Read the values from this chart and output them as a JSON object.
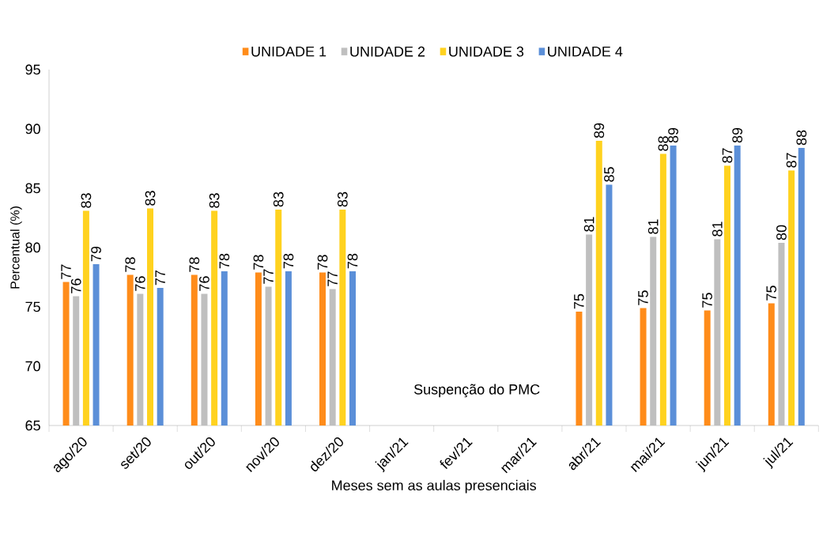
{
  "chart_data": {
    "type": "bar",
    "xlabel": "Meses sem as aulas presenciais",
    "ylabel": "Percentual (%)",
    "categories": [
      "ago/20",
      "set/20",
      "out/20",
      "nov/20",
      "dez/20",
      "jan/21",
      "fev/21",
      "mar/21",
      "abr/21",
      "mai/21",
      "jun/21",
      "jul/21"
    ],
    "series": [
      {
        "name": "UNIDADE 1",
        "color": "#ff8c1a",
        "values": [
          77.1,
          77.7,
          77.7,
          77.9,
          77.9,
          null,
          null,
          null,
          74.6,
          74.9,
          74.7,
          75.3
        ],
        "value_labels": [
          "77",
          "78",
          "78",
          "78",
          "78",
          null,
          null,
          null,
          "75",
          "75",
          "75",
          "75"
        ]
      },
      {
        "name": "UNIDADE 2",
        "color": "#bfbfbf",
        "values": [
          75.9,
          76.1,
          76.1,
          76.7,
          76.5,
          null,
          null,
          null,
          81.1,
          80.9,
          80.7,
          80.4
        ],
        "value_labels": [
          "76",
          "76",
          "76",
          "77",
          "77",
          null,
          null,
          null,
          "81",
          "81",
          "81",
          "80"
        ]
      },
      {
        "name": "UNIDADE 3",
        "color": "#ffd21f",
        "values": [
          83.1,
          83.3,
          83.1,
          83.2,
          83.2,
          null,
          null,
          null,
          89.0,
          87.9,
          86.9,
          86.5
        ],
        "value_labels": [
          "83",
          "83",
          "83",
          "83",
          "83",
          null,
          null,
          null,
          "89",
          "88",
          "87",
          "87"
        ]
      },
      {
        "name": "UNIDADE 4",
        "color": "#5b8fd8",
        "values": [
          78.6,
          76.6,
          78.0,
          78.0,
          78.0,
          null,
          null,
          null,
          85.3,
          88.6,
          88.6,
          88.4
        ],
        "value_labels": [
          "79",
          "77",
          "78",
          "78",
          "78",
          null,
          null,
          null,
          "85",
          "89",
          "89",
          "88"
        ]
      }
    ],
    "ylim": [
      65,
      95
    ],
    "yticks": [
      65,
      70,
      75,
      80,
      85,
      90,
      95
    ],
    "legend": "top",
    "grid": false,
    "annotations": [
      "Suspenção do PMC"
    ]
  }
}
